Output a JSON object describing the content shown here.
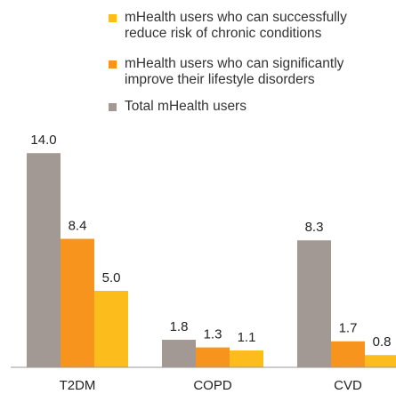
{
  "chart_data": {
    "type": "bar",
    "categories": [
      "T2DM",
      "COPD",
      "CVD"
    ],
    "series": [
      {
        "name": "mHealth users who can successfully reduce risk of chronic conditions",
        "color": "#fbbc1c",
        "values": [
          5.0,
          1.1,
          0.8
        ],
        "value_labels": [
          "5.0",
          "1.1",
          "0.8"
        ]
      },
      {
        "name": "mHealth users who can significantly improve their lifestyle disorders",
        "color": "#f7941d",
        "values": [
          8.4,
          1.3,
          1.7
        ],
        "value_labels": [
          "8.4",
          "1.3",
          "1.7"
        ]
      },
      {
        "name": "Total mHealth users",
        "color": "#a29994",
        "values": [
          14.0,
          1.8,
          8.3
        ],
        "value_labels": [
          "14.0",
          "1.8",
          "8.3"
        ]
      }
    ]
  }
}
